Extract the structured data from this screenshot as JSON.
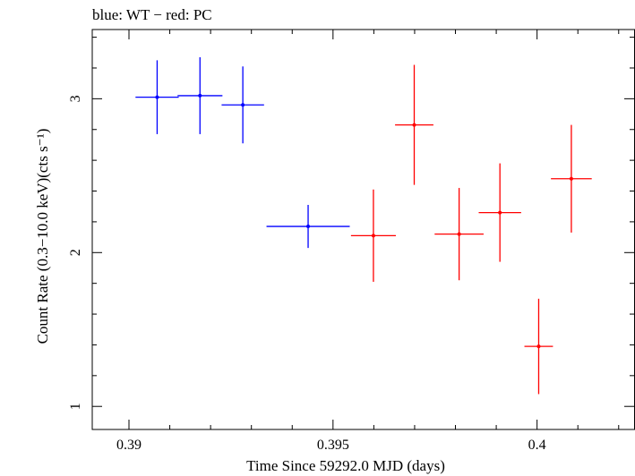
{
  "chart_data": {
    "type": "scatter",
    "title": "blue: WT − red: PC",
    "xlabel": "Time Since 59292.0 MJD (days)",
    "ylabel": "Count Rate (0.3−10.0 keV)(cts s⁻¹)",
    "xlim": [
      0.3891,
      0.4024
    ],
    "ylim": [
      0.85,
      3.45
    ],
    "xticks": [
      0.39,
      0.395,
      0.4
    ],
    "xtick_labels": [
      "0.39",
      "0.395",
      "0.4"
    ],
    "yticks": [
      1,
      2,
      3
    ],
    "ytick_labels": [
      "1",
      "2",
      "3"
    ],
    "grid": false,
    "series": [
      {
        "name": "WT",
        "color": "#0000ff",
        "points": [
          {
            "x": 0.39069,
            "y": 3.01,
            "xerr": 0.00053,
            "yerr": 0.24
          },
          {
            "x": 0.39174,
            "y": 3.02,
            "xerr": 0.00055,
            "yerr": 0.25
          },
          {
            "x": 0.39279,
            "y": 2.96,
            "xerr": 0.00052,
            "yerr": 0.25
          },
          {
            "x": 0.39439,
            "y": 2.17,
            "xerr": 0.00102,
            "yerr": 0.14
          }
        ]
      },
      {
        "name": "PC",
        "color": "#ff0000",
        "points": [
          {
            "x": 0.39599,
            "y": 2.11,
            "xerr": 0.00055,
            "yerr": 0.3
          },
          {
            "x": 0.39699,
            "y": 2.83,
            "xerr": 0.00047,
            "yerr": 0.39
          },
          {
            "x": 0.39809,
            "y": 2.12,
            "xerr": 0.0006,
            "yerr": 0.3
          },
          {
            "x": 0.39909,
            "y": 2.26,
            "xerr": 0.00052,
            "yerr": 0.32
          },
          {
            "x": 0.40004,
            "y": 1.39,
            "xerr": 0.00035,
            "yerr": 0.31
          },
          {
            "x": 0.40084,
            "y": 2.48,
            "xerr": 0.0005,
            "yerr": 0.35
          }
        ]
      }
    ]
  }
}
